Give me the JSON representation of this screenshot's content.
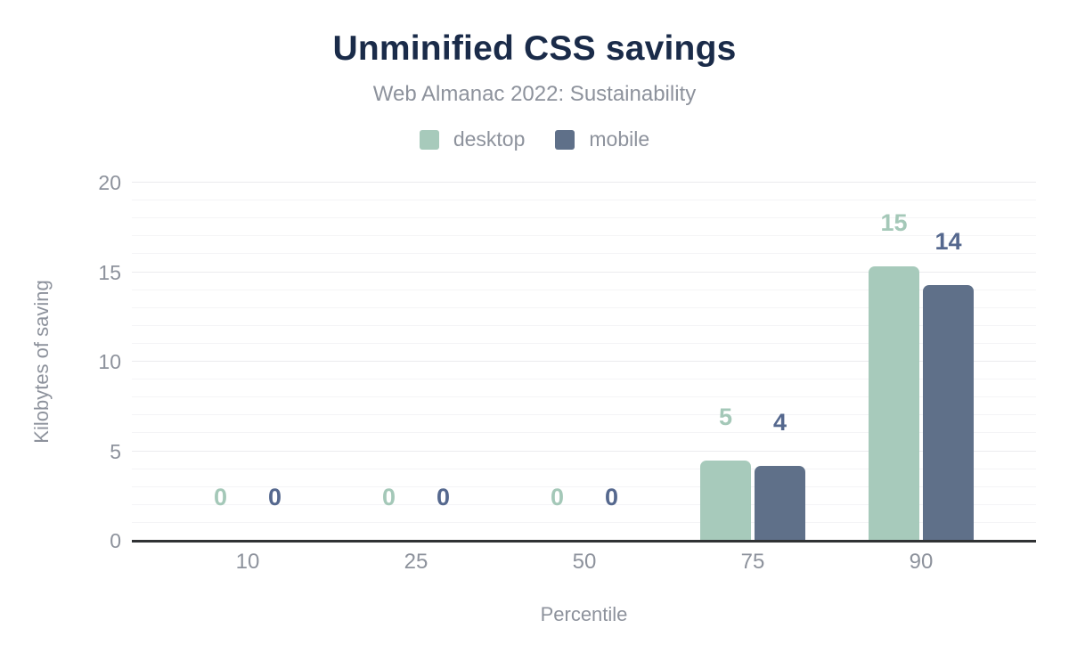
{
  "header": {
    "title": "Unminified CSS savings",
    "subtitle": "Web Almanac 2022: Sustainability"
  },
  "legend": {
    "items": [
      {
        "label": "desktop",
        "color": "#a7cabb"
      },
      {
        "label": "mobile",
        "color": "#5f7089"
      }
    ]
  },
  "axes": {
    "x_title": "Percentile",
    "y_title": "Kilobytes of saving"
  },
  "colors": {
    "title": "#1a2b49",
    "muted_text": "#8d929c",
    "axis_line": "#303234",
    "grid_major": "#ebebee",
    "grid_minor": "#f4f4f6",
    "background": "#ffffff"
  },
  "chart_data": {
    "type": "bar",
    "title": "Unminified CSS savings",
    "subtitle": "Web Almanac 2022: Sustainability",
    "categories": [
      "10",
      "25",
      "50",
      "75",
      "90"
    ],
    "series": [
      {
        "name": "desktop",
        "color": "#a7cabb",
        "label_color": "#a4c8b8",
        "values": [
          0,
          0,
          0,
          4.5,
          15.3
        ],
        "display_values": [
          "0",
          "0",
          "0",
          "5",
          "15"
        ]
      },
      {
        "name": "mobile",
        "color": "#5f7089",
        "label_color": "#55688e",
        "values": [
          0,
          0,
          0,
          4.2,
          14.3
        ],
        "display_values": [
          "0",
          "0",
          "0",
          "4",
          "14"
        ]
      }
    ],
    "xlabel": "Percentile",
    "ylabel": "Kilobytes of saving",
    "ylim": [
      0,
      20
    ],
    "yticks": [
      0,
      5,
      10,
      15,
      20
    ],
    "grid": {
      "horizontal": true,
      "minor_step": 1,
      "major_step": 5
    },
    "legend_position": "top",
    "bar_value_labels": "shown above each bar, colored per series"
  }
}
